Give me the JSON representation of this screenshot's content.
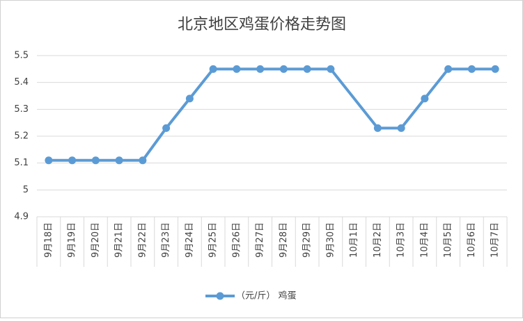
{
  "chart_data": {
    "type": "line",
    "title": "北京地区鸡蛋价格走势图",
    "categories": [
      "9月18日",
      "9月19日",
      "9月20日",
      "9月21日",
      "9月22日",
      "9月23日",
      "9月24日",
      "9月25日",
      "9月26日",
      "9月27日",
      "9月28日",
      "9月29日",
      "9月30日",
      "10月1日",
      "10月2日",
      "10月3日",
      "10月4日",
      "10月5日",
      "10月6日",
      "10月7日"
    ],
    "series": [
      {
        "name": "（元/斤） 鸡蛋",
        "color": "#5b9bd5",
        "values": [
          5.11,
          5.11,
          5.11,
          5.11,
          5.11,
          5.23,
          5.34,
          5.45,
          5.45,
          5.45,
          5.45,
          5.45,
          5.45,
          null,
          5.23,
          5.23,
          5.34,
          5.45,
          5.45,
          5.45
        ]
      }
    ],
    "ylim": [
      4.9,
      5.5
    ],
    "yticks": [
      4.9,
      5,
      5.1,
      5.2,
      5.3,
      5.4,
      5.5
    ],
    "grid": true,
    "span_gaps": true,
    "legend": "bottom"
  }
}
